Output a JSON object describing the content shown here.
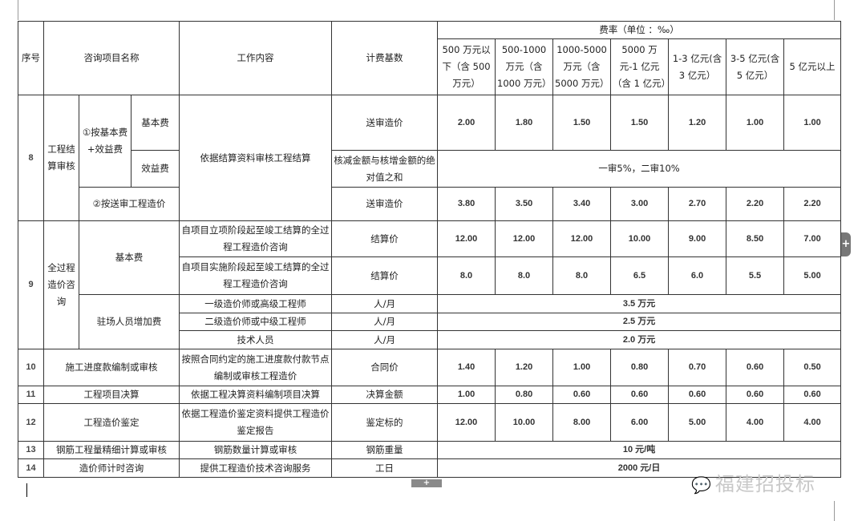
{
  "header": {
    "seq": "序号",
    "name": "咨询项目名称",
    "work": "工作内容",
    "base": "计费基数",
    "rate_title": "费率（单位 ：‰）",
    "ranges": [
      "500 万元以下（含 500 万元）",
      "500-1000 万元（含 1000 万元）",
      "1000-5000 万元（含 5000 万元）",
      "5000 万元-1 亿元（含 1 亿元）",
      "1-3 亿元(含 3 亿元）",
      "3-5 亿元(含 5 亿元）",
      "5 亿元以上"
    ]
  },
  "r8": {
    "seq": "8",
    "name": "工程结算审核",
    "method1": "①按基本费+效益费",
    "basic": "基本费",
    "benefit": "效益费",
    "method2": "②按送审工程造价",
    "work": "依据结算资料审核工程结算",
    "base1": "送审造价",
    "rates1": [
      "2.00",
      "1.80",
      "1.50",
      "1.50",
      "1.20",
      "1.00",
      "1.00"
    ],
    "base2": "核减金额与核增金额的绝对值之和",
    "rate2": "一审5%，二审10%",
    "base3": "送审造价",
    "rates3": [
      "3.80",
      "3.50",
      "3.40",
      "3.00",
      "2.70",
      "2.20",
      "2.20"
    ]
  },
  "r9": {
    "seq": "9",
    "name": "全过程造价咨询",
    "basic": "基本费",
    "work1": "自项目立项阶段起至竣工结算的全过程工程造价咨询",
    "base1": "结算价",
    "rates1": [
      "12.00",
      "12.00",
      "12.00",
      "10.00",
      "9.00",
      "8.50",
      "7.00"
    ],
    "work2": "自项目实施阶段起至竣工结算的全过程工程造价咨询",
    "base2": "结算价",
    "rates2": [
      "8.0",
      "8.0",
      "8.0",
      "6.5",
      "6.0",
      "5.5",
      "5.00"
    ],
    "onsite": "驻场人员增加费",
    "staff": [
      {
        "role": "一级造价师或高级工程师",
        "unit": "人/月",
        "fee": "3.5 万元"
      },
      {
        "role": "二级造价师或中级工程师",
        "unit": "人/月",
        "fee": "2.5 万元"
      },
      {
        "role": "技术人员",
        "unit": "人/月",
        "fee": "2.0 万元"
      }
    ]
  },
  "r10": {
    "seq": "10",
    "name": "施工进度款编制或审核",
    "work": "按照合同约定的施工进度款付款节点编制或审核工程造价",
    "base": "合同价",
    "rates": [
      "1.40",
      "1.20",
      "1.00",
      "0.80",
      "0.70",
      "0.60",
      "0.50"
    ]
  },
  "r11": {
    "seq": "11",
    "name": "工程项目决算",
    "work": "依据工程决算资料编制项目决算",
    "base": "决算金额",
    "rates": [
      "1.00",
      "0.80",
      "0.60",
      "0.60",
      "0.60",
      "0.60",
      "0.60"
    ]
  },
  "r12": {
    "seq": "12",
    "name": "工程造价鉴定",
    "work": "依据工程造价鉴定资料提供工程造价鉴定报告",
    "base": "鉴定标的",
    "rates": [
      "12.00",
      "10.00",
      "8.00",
      "6.00",
      "5.00",
      "4.00",
      "4.00"
    ]
  },
  "r13": {
    "seq": "13",
    "name": "钢筋工程量精细计算或审核",
    "work": "钢筋数量计算或审核",
    "base": "钢筋重量",
    "fee": "10 元/吨"
  },
  "r14": {
    "seq": "14",
    "name": "造价师计时咨询",
    "work": "提供工程造价技术咨询服务",
    "base": "工日",
    "fee": "2000 元/日"
  },
  "ui": {
    "add_label": "+",
    "watermark": "福建招投标",
    "watermark_icon": "wechat-icon"
  }
}
